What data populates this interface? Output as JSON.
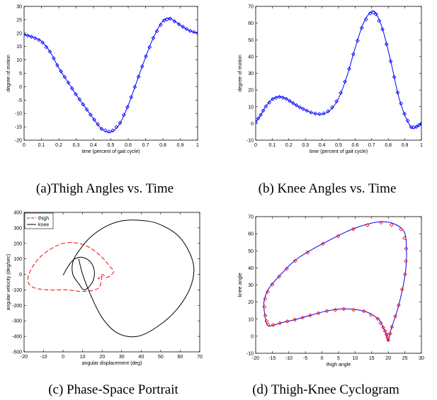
{
  "chart_data": [
    {
      "type": "line",
      "caption": "(a)Thigh Angles vs. Time",
      "xlabel": "time (percent of gait cycle)",
      "ylabel": "degree of motion",
      "xlim": [
        0,
        1
      ],
      "ylim": [
        -20,
        30
      ],
      "xticks": [
        "0",
        "0.1",
        "0.2",
        "0.3",
        "0.4",
        "0.5",
        "0.6",
        "0.7",
        "0.8",
        "0.9",
        "1"
      ],
      "yticks": [
        "-20",
        "-15",
        "-10",
        "-5",
        "0",
        "5",
        "10",
        "15",
        "20",
        "25",
        "30"
      ],
      "series": [
        {
          "color": "#0000ff",
          "marker": "diamond",
          "x": [
            0,
            0.05,
            0.1,
            0.15,
            0.2,
            0.25,
            0.3,
            0.35,
            0.4,
            0.45,
            0.5,
            0.55,
            0.6,
            0.65,
            0.7,
            0.75,
            0.8,
            0.84,
            0.9,
            0.95,
            1.0
          ],
          "y": [
            19.5,
            18.5,
            17,
            13,
            7,
            2,
            -3,
            -7.5,
            -12,
            -16,
            -17,
            -14,
            -7,
            2,
            11,
            19,
            24.5,
            25.5,
            23,
            21,
            20
          ]
        }
      ]
    },
    {
      "type": "line",
      "caption": "(b) Knee Angles vs. Time",
      "xlabel": "time (percent of gait cycle)",
      "ylabel": "degree of motion",
      "xlim": [
        0,
        1
      ],
      "ylim": [
        -10,
        70
      ],
      "xticks": [
        "0",
        "0.1",
        "0.2",
        "0.3",
        "0.4",
        "0.5",
        "0.6",
        "0.7",
        "0.8",
        "0.9",
        "1"
      ],
      "yticks": [
        "-10",
        "0",
        "10",
        "20",
        "30",
        "40",
        "50",
        "60",
        "70"
      ],
      "series": [
        {
          "color": "#0000ff",
          "marker": "diamond",
          "x": [
            0,
            0.03,
            0.06,
            0.1,
            0.14,
            0.18,
            0.22,
            0.26,
            0.3,
            0.35,
            0.4,
            0.45,
            0.5,
            0.55,
            0.6,
            0.65,
            0.7,
            0.73,
            0.77,
            0.82,
            0.86,
            0.9,
            0.94,
            0.97,
            1.0
          ],
          "y": [
            1,
            5,
            10,
            14.5,
            16,
            15,
            12.5,
            10,
            8,
            6,
            5.5,
            8,
            15,
            28,
            45,
            60,
            67,
            65,
            55,
            35,
            17,
            5,
            -2.5,
            -2,
            0
          ]
        }
      ]
    },
    {
      "type": "line",
      "caption": "(c) Phase-Space Portrait",
      "xlabel": "angular displacement (deg)",
      "ylabel": "angular velocity (deg/sec)",
      "xlim": [
        -20,
        70
      ],
      "ylim": [
        -500,
        400
      ],
      "xticks": [
        "-20",
        "-10",
        "0",
        "10",
        "20",
        "30",
        "40",
        "50",
        "60",
        "70"
      ],
      "yticks": [
        "-500",
        "-400",
        "-300",
        "-200",
        "-100",
        "0",
        "100",
        "200",
        "300",
        "400"
      ],
      "legend": [
        "thigh",
        "knee"
      ],
      "series": [
        {
          "name": "thigh",
          "color": "#ff0000",
          "dash": true,
          "x": [
            20,
            18,
            10,
            2,
            -8,
            -16,
            -18,
            -14,
            -8,
            0,
            8,
            14,
            20,
            24,
            26,
            24,
            22,
            20,
            18,
            20
          ],
          "y": [
            -10,
            -90,
            -110,
            -100,
            -100,
            -80,
            -20,
            80,
            150,
            200,
            200,
            170,
            110,
            50,
            20,
            -10,
            -20,
            0,
            -30,
            -10
          ]
        },
        {
          "name": "knee",
          "color": "#000000",
          "dash": false,
          "x": [
            0,
            3,
            6,
            10,
            14,
            16,
            15,
            11,
            8,
            5,
            5,
            8,
            14,
            22,
            30,
            38,
            48,
            58,
            64,
            67,
            65,
            58,
            48,
            38,
            28,
            20,
            14,
            10,
            8
          ],
          "y": [
            -5,
            60,
            100,
            110,
            80,
            20,
            -50,
            -100,
            -60,
            0,
            80,
            150,
            240,
            310,
            345,
            350,
            330,
            260,
            160,
            40,
            -90,
            -230,
            -340,
            -400,
            -380,
            -280,
            -130,
            0,
            100
          ]
        }
      ]
    },
    {
      "type": "line",
      "caption": "(d) Thigh-Knee Cyclogram",
      "xlabel": "thigh angle",
      "ylabel": "knee angle",
      "xlim": [
        -20,
        30
      ],
      "ylim": [
        -10,
        70
      ],
      "xticks": [
        "-20",
        "-15",
        "-10",
        "-5",
        "0",
        "5",
        "10",
        "15",
        "20",
        "25",
        "30"
      ],
      "yticks": [
        "-10",
        "0",
        "10",
        "20",
        "30",
        "40",
        "50",
        "60",
        "70"
      ],
      "series": [
        {
          "color": "#0000ff",
          "marker": "diamond",
          "marker_color": "#ff0000",
          "x": [
            19.5,
            18.5,
            17,
            13,
            7,
            2,
            -3,
            -7.5,
            -12,
            -16,
            -17,
            -17.5,
            -16,
            -12,
            -7,
            2,
            11,
            19,
            24.5,
            25.5,
            25,
            23,
            21,
            20,
            19.5
          ],
          "y": [
            1,
            5,
            10,
            14.5,
            16,
            15,
            12.5,
            10,
            8,
            6,
            10,
            20,
            28,
            37,
            46,
            56,
            64,
            67,
            62,
            50,
            35,
            17,
            5,
            -2.5,
            1
          ]
        }
      ]
    }
  ]
}
